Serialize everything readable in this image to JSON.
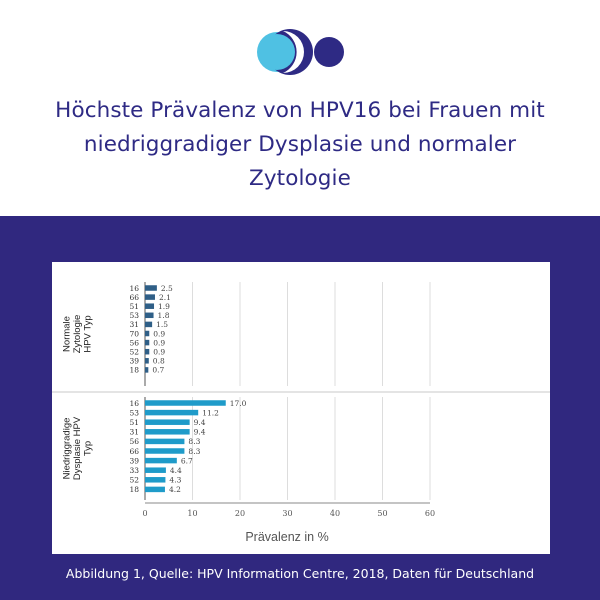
{
  "header": {
    "title": "Höchste Prävalenz von HPV16 bei Frauen mit niedriggradiger Dysplasie und normaler Zytologie"
  },
  "colors": {
    "brand_dark": "#2e2a84",
    "brand_light": "#4fc1e3",
    "band": "#30287f",
    "bar_normal": "#2f5f87",
    "bar_dysplasia": "#1f9bc9"
  },
  "icons": {
    "logo": "two-circles-logo"
  },
  "chart_data": {
    "type": "bar",
    "orientation": "horizontal",
    "xlabel": "Prävalenz in %",
    "xlim": [
      0,
      60
    ],
    "xticks": [
      "0",
      "10",
      "20",
      "30",
      "40",
      "50",
      "60"
    ],
    "grid": true,
    "panels": [
      {
        "ylabel": "Normale Zytologie HPV Typ",
        "categories": [
          "16",
          "66",
          "51",
          "53",
          "31",
          "70",
          "56",
          "52",
          "39",
          "18"
        ],
        "values": [
          2.5,
          2.1,
          1.9,
          1.8,
          1.5,
          0.9,
          0.9,
          0.9,
          0.8,
          0.7
        ],
        "labels": [
          "2.5",
          "2.1",
          "1.9",
          "1.8",
          "1.5",
          "0.9",
          "0.9",
          "0.9",
          "0.8",
          "0.7"
        ]
      },
      {
        "ylabel": "Niedriggradige Dysplasie HPV Typ",
        "categories": [
          "16",
          "53",
          "51",
          "31",
          "56",
          "66",
          "39",
          "33",
          "52",
          "18"
        ],
        "values": [
          17.0,
          11.2,
          9.4,
          9.4,
          8.3,
          8.3,
          6.7,
          4.4,
          4.3,
          4.2
        ],
        "labels": [
          "17.0",
          "11.2",
          "9.4",
          "9.4",
          "8.3",
          "8.3",
          "6.7",
          "4.4",
          "4.3",
          "4.2"
        ]
      }
    ]
  },
  "footer": {
    "caption": "Abbildung 1, Quelle: HPV Information Centre, 2018, Daten für Deutschland"
  }
}
